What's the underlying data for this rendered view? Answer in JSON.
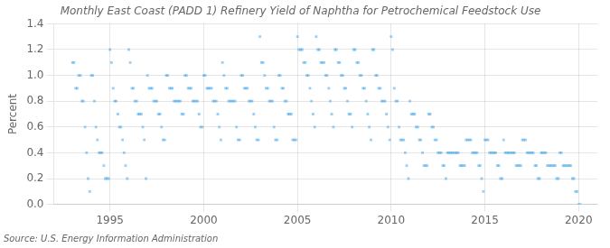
{
  "chart_data": {
    "type": "scatter",
    "title": "Monthly East Coast (PADD 1) Refinery Yield of Naphtha for Petrochemical Feedstock Use",
    "ylabel": "Percent",
    "annotations": [
      "Source: U.S. Energy Information Administration"
    ],
    "marker": "square",
    "grid": true,
    "xlim": [
      1992.0,
      2021.0
    ],
    "xticks": [
      1995,
      2000,
      2005,
      2010,
      2015,
      2020
    ],
    "ylim": [
      0.0,
      1.4
    ],
    "yticks": [
      {
        "value": 0.0,
        "label": "0.0"
      },
      0.2,
      0.4,
      0.6,
      0.8,
      {
        "value": 1.0,
        "label": "1.0"
      },
      1.2,
      1.4
    ],
    "x": [
      1993.0,
      1993.08,
      1993.17,
      1993.25,
      1993.33,
      1993.42,
      1993.5,
      1993.58,
      1993.67,
      1993.75,
      1993.83,
      1993.92,
      1994.0,
      1994.08,
      1994.17,
      1994.25,
      1994.33,
      1994.42,
      1994.5,
      1994.58,
      1994.67,
      1994.75,
      1994.83,
      1994.92,
      1995.0,
      1995.08,
      1995.17,
      1995.25,
      1995.33,
      1995.42,
      1995.5,
      1995.58,
      1995.67,
      1995.75,
      1995.83,
      1995.92,
      1996.0,
      1996.08,
      1996.17,
      1996.25,
      1996.33,
      1996.42,
      1996.5,
      1996.58,
      1996.67,
      1996.75,
      1996.83,
      1996.92,
      1997.0,
      1997.08,
      1997.17,
      1997.25,
      1997.33,
      1997.42,
      1997.5,
      1997.58,
      1997.67,
      1997.75,
      1997.83,
      1997.92,
      1998.0,
      1998.08,
      1998.17,
      1998.25,
      1998.33,
      1998.42,
      1998.5,
      1998.58,
      1998.67,
      1998.75,
      1998.83,
      1998.92,
      1999.0,
      1999.08,
      1999.17,
      1999.25,
      1999.33,
      1999.42,
      1999.5,
      1999.58,
      1999.67,
      1999.75,
      1999.83,
      1999.92,
      2000.0,
      2000.08,
      2000.17,
      2000.25,
      2000.33,
      2000.42,
      2000.5,
      2000.58,
      2000.67,
      2000.75,
      2000.83,
      2000.92,
      2001.0,
      2001.08,
      2001.17,
      2001.25,
      2001.33,
      2001.42,
      2001.5,
      2001.58,
      2001.67,
      2001.75,
      2001.83,
      2001.92,
      2002.0,
      2002.08,
      2002.17,
      2002.25,
      2002.33,
      2002.42,
      2002.5,
      2002.58,
      2002.67,
      2002.75,
      2002.83,
      2002.92,
      2003.0,
      2003.08,
      2003.17,
      2003.25,
      2003.33,
      2003.42,
      2003.5,
      2003.58,
      2003.67,
      2003.75,
      2003.83,
      2003.92,
      2004.0,
      2004.08,
      2004.17,
      2004.25,
      2004.33,
      2004.42,
      2004.5,
      2004.58,
      2004.67,
      2004.75,
      2004.83,
      2004.92,
      2005.0,
      2005.08,
      2005.17,
      2005.25,
      2005.33,
      2005.42,
      2005.5,
      2005.58,
      2005.67,
      2005.75,
      2005.83,
      2005.92,
      2006.0,
      2006.08,
      2006.17,
      2006.25,
      2006.33,
      2006.42,
      2006.5,
      2006.58,
      2006.67,
      2006.75,
      2006.83,
      2006.92,
      2007.0,
      2007.08,
      2007.17,
      2007.25,
      2007.33,
      2007.42,
      2007.5,
      2007.58,
      2007.67,
      2007.75,
      2007.83,
      2007.92,
      2008.0,
      2008.08,
      2008.17,
      2008.25,
      2008.33,
      2008.42,
      2008.5,
      2008.58,
      2008.67,
      2008.75,
      2008.83,
      2008.92,
      2009.0,
      2009.08,
      2009.17,
      2009.25,
      2009.33,
      2009.42,
      2009.5,
      2009.58,
      2009.67,
      2009.75,
      2009.83,
      2009.92,
      2010.0,
      2010.08,
      2010.17,
      2010.25,
      2010.33,
      2010.42,
      2010.5,
      2010.58,
      2010.67,
      2010.75,
      2010.83,
      2010.92,
      2011.0,
      2011.08,
      2011.17,
      2011.25,
      2011.33,
      2011.42,
      2011.5,
      2011.58,
      2011.67,
      2011.75,
      2011.83,
      2011.92,
      2012.0,
      2012.08,
      2012.17,
      2012.25,
      2012.33,
      2012.42,
      2012.5,
      2012.58,
      2012.67,
      2012.75,
      2012.83,
      2012.92,
      2013.0,
      2013.08,
      2013.17,
      2013.25,
      2013.33,
      2013.42,
      2013.5,
      2013.58,
      2013.67,
      2013.75,
      2013.83,
      2013.92,
      2014.0,
      2014.08,
      2014.17,
      2014.25,
      2014.33,
      2014.42,
      2014.5,
      2014.58,
      2014.67,
      2014.75,
      2014.83,
      2014.92,
      2015.0,
      2015.08,
      2015.17,
      2015.25,
      2015.33,
      2015.42,
      2015.5,
      2015.58,
      2015.67,
      2015.75,
      2015.83,
      2015.92,
      2016.0,
      2016.08,
      2016.17,
      2016.25,
      2016.33,
      2016.42,
      2016.5,
      2016.58,
      2016.67,
      2016.75,
      2016.83,
      2016.92,
      2017.0,
      2017.08,
      2017.17,
      2017.25,
      2017.33,
      2017.42,
      2017.5,
      2017.58,
      2017.67,
      2017.75,
      2017.83,
      2017.92,
      2018.0,
      2018.08,
      2018.17,
      2018.25,
      2018.33,
      2018.42,
      2018.5,
      2018.58,
      2018.67,
      2018.75,
      2018.83,
      2018.92,
      2019.0,
      2019.08,
      2019.17,
      2019.25,
      2019.33,
      2019.42,
      2019.5,
      2019.58,
      2019.67,
      2019.75,
      2019.83,
      2019.92,
      2020.0,
      2020.08
    ],
    "values": [
      1.1,
      1.1,
      0.9,
      0.9,
      1.0,
      1.0,
      0.8,
      0.8,
      0.6,
      0.4,
      0.2,
      0.1,
      1.0,
      1.0,
      0.8,
      0.6,
      0.5,
      0.4,
      0.4,
      0.4,
      0.3,
      0.2,
      0.2,
      0.2,
      1.2,
      1.1,
      0.9,
      0.8,
      0.8,
      0.7,
      0.6,
      0.6,
      0.5,
      0.4,
      0.3,
      0.2,
      1.2,
      1.1,
      0.9,
      0.9,
      0.8,
      0.8,
      0.7,
      0.7,
      0.7,
      0.6,
      0.5,
      0.2,
      1.0,
      0.9,
      0.9,
      0.9,
      0.8,
      0.8,
      0.8,
      0.7,
      0.7,
      0.6,
      0.5,
      0.5,
      1.0,
      1.0,
      0.9,
      0.9,
      0.9,
      0.8,
      0.8,
      0.8,
      0.8,
      0.8,
      0.7,
      0.7,
      1.0,
      1.0,
      0.9,
      0.9,
      0.9,
      0.8,
      0.8,
      0.8,
      0.8,
      0.7,
      0.6,
      0.6,
      1.0,
      1.0,
      0.9,
      0.9,
      0.9,
      0.9,
      0.8,
      0.8,
      0.8,
      0.7,
      0.6,
      0.5,
      1.1,
      1.0,
      0.9,
      0.9,
      0.8,
      0.8,
      0.8,
      0.8,
      0.8,
      0.6,
      0.5,
      0.5,
      1.0,
      1.0,
      0.9,
      0.9,
      0.9,
      0.8,
      0.8,
      0.8,
      0.7,
      0.6,
      0.5,
      0.5,
      1.3,
      1.1,
      1.1,
      1.0,
      0.9,
      0.9,
      0.8,
      0.8,
      0.8,
      0.6,
      0.5,
      0.5,
      1.0,
      1.0,
      0.9,
      0.9,
      0.8,
      0.8,
      0.7,
      0.7,
      0.7,
      0.5,
      0.5,
      0.5,
      1.3,
      1.2,
      1.2,
      1.2,
      1.1,
      1.1,
      1.0,
      1.0,
      0.9,
      0.8,
      0.7,
      0.6,
      1.3,
      1.2,
      1.2,
      1.1,
      1.1,
      1.1,
      1.0,
      1.0,
      0.9,
      0.8,
      0.7,
      0.6,
      1.2,
      1.2,
      1.1,
      1.1,
      1.0,
      1.0,
      0.9,
      0.9,
      0.8,
      0.7,
      0.7,
      0.6,
      1.2,
      1.2,
      1.1,
      1.1,
      1.0,
      1.0,
      0.9,
      0.9,
      0.8,
      0.7,
      0.6,
      0.5,
      1.2,
      1.2,
      1.0,
      1.0,
      0.9,
      0.9,
      0.8,
      0.8,
      0.8,
      0.7,
      0.6,
      0.5,
      1.3,
      1.2,
      0.9,
      0.8,
      0.8,
      0.6,
      0.5,
      0.5,
      0.5,
      0.4,
      0.3,
      0.2,
      0.8,
      0.7,
      0.7,
      0.7,
      0.6,
      0.6,
      0.5,
      0.5,
      0.4,
      0.3,
      0.3,
      0.3,
      0.7,
      0.7,
      0.6,
      0.6,
      0.5,
      0.5,
      0.4,
      0.4,
      0.4,
      0.3,
      0.3,
      0.2,
      0.4,
      0.4,
      0.4,
      0.4,
      0.4,
      0.4,
      0.4,
      0.4,
      0.3,
      0.3,
      0.3,
      0.3,
      0.5,
      0.5,
      0.5,
      0.5,
      0.4,
      0.4,
      0.4,
      0.4,
      0.3,
      0.3,
      0.2,
      0.1,
      0.5,
      0.5,
      0.5,
      0.4,
      0.4,
      0.4,
      0.4,
      0.4,
      0.3,
      0.3,
      0.2,
      0.2,
      0.5,
      0.4,
      0.4,
      0.4,
      0.4,
      0.4,
      0.4,
      0.4,
      0.3,
      0.3,
      0.3,
      0.3,
      0.5,
      0.5,
      0.5,
      0.4,
      0.4,
      0.4,
      0.4,
      0.4,
      0.3,
      0.3,
      0.2,
      0.2,
      0.4,
      0.4,
      0.4,
      0.4,
      0.3,
      0.3,
      0.3,
      0.3,
      0.3,
      0.3,
      0.2,
      0.2,
      0.4,
      0.4,
      0.3,
      0.3,
      0.3,
      0.3,
      0.3,
      0.3,
      0.2,
      0.2,
      0.1,
      0.1,
      0.0,
      0.0
    ]
  }
}
